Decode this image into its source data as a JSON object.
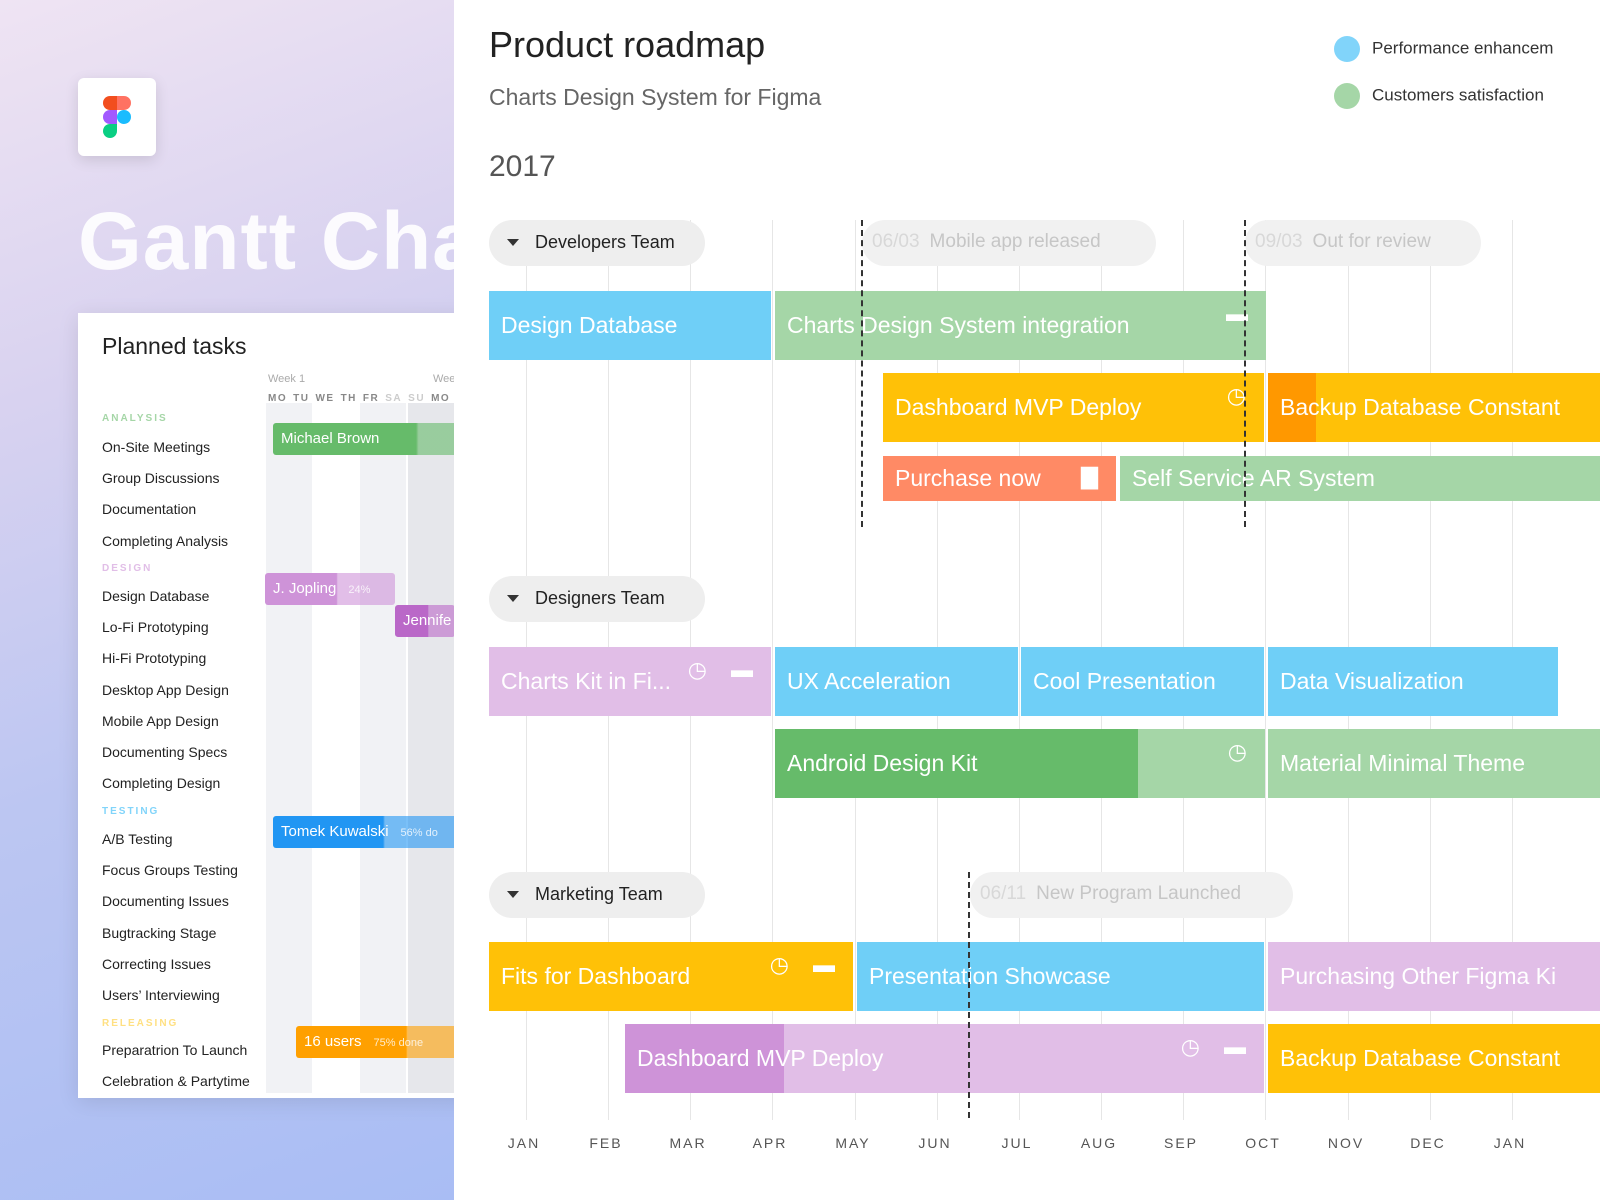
{
  "left": {
    "hero_title": "Gantt Cha",
    "card_title": "Planned tasks",
    "weeks": [
      "Week 1",
      "Wee"
    ],
    "days": [
      "MO",
      "TU",
      "WE",
      "TH",
      "FR",
      "SA",
      "SU",
      "MO"
    ],
    "sections": [
      {
        "label": "ANALYSIS",
        "color": "#a5d6a7",
        "tasks": [
          "On-Site Meetings",
          "Group Discussions",
          "Documentation",
          "Completing Analysis"
        ]
      },
      {
        "label": "DESIGN",
        "color": "#e1bee7",
        "tasks": [
          "Design Database",
          "Lo-Fi Prototyping",
          "Hi-Fi Prototyping",
          "Desktop App Design",
          "Mobile App Design",
          "Documenting Specs",
          "Completing Design"
        ]
      },
      {
        "label": "TESTING",
        "color": "#81d4fa",
        "tasks": [
          "A/B Testing",
          "Focus Groups Testing",
          "Documenting Issues",
          "Bugtracking Stage",
          "Correcting Issues",
          "Users’ Interviewing"
        ]
      },
      {
        "label": "RELEASING",
        "color": "#ffe082",
        "tasks": [
          "Preparatrion To Launch",
          "Celebration & Partytime"
        ]
      }
    ],
    "bars": [
      {
        "label": "Michael Brown",
        "extra": "",
        "color": "#66bb6a"
      },
      {
        "label": "J. Jopling",
        "extra": "24%",
        "color": "#ce93d8"
      },
      {
        "label": "Jennife",
        "extra": "",
        "color": "#ba68c8"
      },
      {
        "label": "Tomek Kuwalski",
        "extra": "56% do",
        "color": "#2196f3"
      },
      {
        "label": "16 users",
        "extra": "75% done",
        "color": "#ffa000"
      }
    ]
  },
  "header": {
    "title": "Product roadmap",
    "subtitle": "Charts Design System for Figma",
    "year": "2017"
  },
  "legend": [
    {
      "label": "Performance enhancem",
      "color": "#81d4fa"
    },
    {
      "label": "Customers satisfaction",
      "color": "#a5d6a7"
    }
  ],
  "teams": [
    "Developers Team",
    "Designers Team",
    "Marketing Team"
  ],
  "milestones": [
    {
      "date": "06/03",
      "label": "Mobile app released"
    },
    {
      "date": "09/03",
      "label": "Out for review"
    },
    {
      "date": "06/11",
      "label": "New Program Launched"
    }
  ],
  "colors": {
    "blue": "#6fcff7",
    "green": "#a5d6a7",
    "darkgreen": "#66bb6a",
    "amber": "#ffc107",
    "orange": "#ff9800",
    "salmon": "#ff8a65",
    "lilac": "#e1bee7",
    "purple": "#ce93d8"
  },
  "tasks": [
    {
      "label": "Design Database",
      "color": "blue",
      "icons": []
    },
    {
      "label": "Charts Design System integration",
      "color": "green",
      "icons": [
        "comment-icon"
      ]
    },
    {
      "label": "Dashboard MVP Deploy",
      "color": "amber",
      "icons": [
        "clock-icon"
      ]
    },
    {
      "label": "Backup Database Constant",
      "color": "amber",
      "icons": []
    },
    {
      "label": "Purchase now",
      "color": "salmon",
      "icons": [
        "trash-icon"
      ]
    },
    {
      "label": "Self Service AR System",
      "color": "green",
      "icons": []
    },
    {
      "label": "Charts Kit in Fi...",
      "color": "lilac",
      "icons": [
        "clock-icon",
        "comment-icon"
      ]
    },
    {
      "label": "UX Acceleration",
      "color": "blue",
      "icons": []
    },
    {
      "label": "Cool Presentation",
      "color": "blue",
      "icons": []
    },
    {
      "label": "Data Visualization",
      "color": "blue",
      "icons": []
    },
    {
      "label": "Android Design Kit",
      "color": "green",
      "icons": [
        "clock-icon"
      ]
    },
    {
      "label": "Material Minimal Theme",
      "color": "green",
      "icons": []
    },
    {
      "label": "Fits for Dashboard",
      "color": "amber",
      "icons": [
        "clock-icon",
        "comment-icon"
      ]
    },
    {
      "label": "Presentation Showcase",
      "color": "blue",
      "icons": []
    },
    {
      "label": "Purchasing Other Figma Ki",
      "color": "lilac",
      "icons": []
    },
    {
      "label": "Dashboard MVP Deploy",
      "color": "lilac",
      "icons": [
        "clock-icon",
        "comment-icon"
      ]
    },
    {
      "label": "Backup Database Constant",
      "color": "amber",
      "icons": []
    }
  ],
  "months": [
    "JAN",
    "FEB",
    "MAR",
    "APR",
    "MAY",
    "JUN",
    "JUL",
    "AUG",
    "SEP",
    "OCT",
    "NOV",
    "DEC",
    "JAN"
  ]
}
